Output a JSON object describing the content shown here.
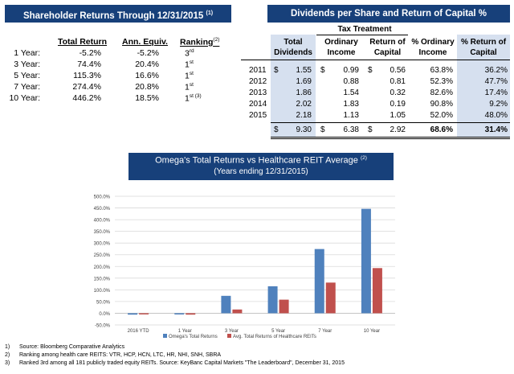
{
  "shareholder_returns": {
    "title": "Shareholder Returns Through 12/31/2015",
    "title_note": "(1)",
    "headers": {
      "total": "Total Return",
      "ann": "Ann. Equiv.",
      "rank": "Ranking",
      "rank_note": "(2)"
    },
    "rows": [
      {
        "label": "1 Year:",
        "total": "-5.2%",
        "ann": "-5.2%",
        "rank": "3",
        "rank_sup": "rd"
      },
      {
        "label": "3 Year:",
        "total": "74.4%",
        "ann": "20.4%",
        "rank": "1",
        "rank_sup": "st"
      },
      {
        "label": "5 Year:",
        "total": "115.3%",
        "ann": "16.6%",
        "rank": "1",
        "rank_sup": "st"
      },
      {
        "label": "7 Year:",
        "total": "274.4%",
        "ann": "20.8%",
        "rank": "1",
        "rank_sup": "st"
      },
      {
        "label": "10 Year:",
        "total": "446.2%",
        "ann": "18.5%",
        "rank": "1",
        "rank_sup": "st (3)"
      }
    ]
  },
  "dividends": {
    "title": "Dividends per Share and Return of Capital %",
    "group_header": "Tax Treatment",
    "headers": {
      "total_1": "Total",
      "total_2": "Dividends",
      "ord_1": "Ordinary",
      "ord_2": "Income",
      "roc_1": "Return of",
      "roc_2": "Capital",
      "pord_1": "% Ordinary",
      "pord_2": "Income",
      "proc_1": "% Return of",
      "proc_2": "Capital"
    },
    "currency": "$",
    "rows": [
      {
        "year": "2011",
        "total": "1.55",
        "ord": "0.99",
        "roc": "0.56",
        "pord": "63.8%",
        "proc": "36.2%",
        "dollar": true
      },
      {
        "year": "2012",
        "total": "1.69",
        "ord": "0.88",
        "roc": "0.81",
        "pord": "52.3%",
        "proc": "47.7%",
        "dollar": false
      },
      {
        "year": "2013",
        "total": "1.86",
        "ord": "1.54",
        "roc": "0.32",
        "pord": "82.6%",
        "proc": "17.4%",
        "dollar": false
      },
      {
        "year": "2014",
        "total": "2.02",
        "ord": "1.83",
        "roc": "0.19",
        "pord": "90.8%",
        "proc": "9.2%",
        "dollar": false
      },
      {
        "year": "2015",
        "total": "2.18",
        "ord": "1.13",
        "roc": "1.05",
        "pord": "52.0%",
        "proc": "48.0%",
        "dollar": false
      }
    ],
    "totals": {
      "total": "9.30",
      "ord": "6.38",
      "roc": "2.92",
      "pord": "68.6%",
      "proc": "31.4%"
    }
  },
  "chart_title": {
    "line1": "Omega's Total Returns vs Healthcare REIT Average",
    "line1_note": "(2)",
    "line2": "(Years ending 12/31/2015)"
  },
  "chart_data": {
    "type": "bar",
    "categories": [
      "2016 YTD",
      "1 Year",
      "3 Year",
      "5 Year",
      "7 Year",
      "10 Year"
    ],
    "series": [
      {
        "name": "Omega's Total Returns",
        "values": [
          -6,
          -5.2,
          74.4,
          115.3,
          274.4,
          446.2
        ],
        "color": "#4f81bd"
      },
      {
        "name": "Avg. Total Returns of Healthcare REITs",
        "values": [
          -5,
          -6,
          16,
          58,
          131,
          193
        ],
        "color": "#c0504d"
      }
    ],
    "ylim": [
      -50,
      500
    ],
    "yticks": [
      -50,
      0,
      50,
      100,
      150,
      200,
      250,
      300,
      350,
      400,
      450,
      500
    ],
    "ytick_labels": [
      "-50.0%",
      "0.0%",
      "50.0%",
      "100.0%",
      "150.0%",
      "200.0%",
      "250.0%",
      "300.0%",
      "350.0%",
      "400.0%",
      "450.0%",
      "500.0%"
    ],
    "grid": true,
    "legend": "bottom"
  },
  "footnotes": [
    {
      "num": "1)",
      "text": "Source:  Bloomberg Comparative Analytics"
    },
    {
      "num": "2)",
      "text": "Ranking among health care REITS:  VTR, HCP, HCN, LTC, HR, NHI, SNH, SBRA"
    },
    {
      "num": "3)",
      "text": "Ranked 3rd among all 181 publicly traded equity REITs.  Source:  KeyBanc  Capital Markets \"The Leaderboard\", December 31, 2015"
    }
  ]
}
